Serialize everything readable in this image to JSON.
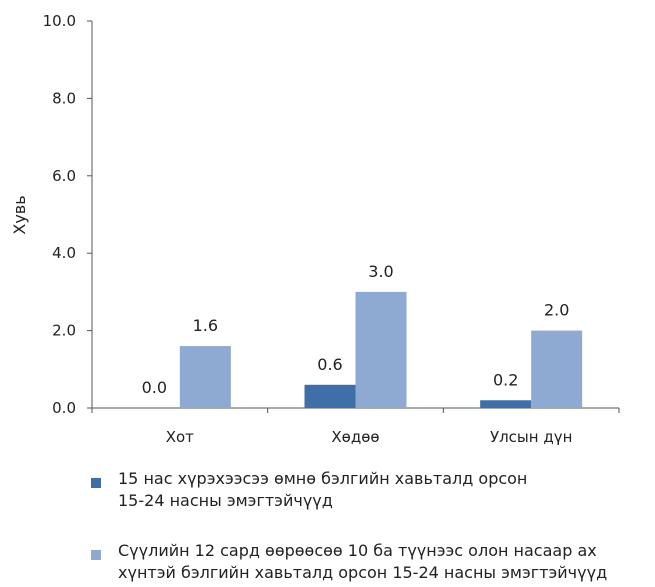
{
  "chart_data": {
    "type": "bar",
    "ylabel": "Хувь",
    "ylim": [
      0,
      10
    ],
    "yticks": [
      "0.0",
      "2.0",
      "4.0",
      "6.0",
      "8.0",
      "10.0"
    ],
    "categories": [
      "Хот",
      "Хөдөө",
      "Улсын дүн"
    ],
    "series": [
      {
        "name": "15 нас хүрэхээсээ өмнө бэлгийн хавьталд орсон 15-24 насны эмэгтэйчүүд",
        "name_lines": [
          "15 нас хүрэхээсээ өмнө бэлгийн хавьталд орсон",
          "15-24 насны эмэгтэйчүүд"
        ],
        "color": "#3E6FA9",
        "values": [
          0.0,
          0.6,
          0.2
        ],
        "labels": [
          "0.0",
          "0.6",
          "0.2"
        ]
      },
      {
        "name": "Сүүлийн 12 сард өөрөөсөө 10 ба түүнээс олон насаар ах хүнтэй бэлгийн хавьталд орсон 15-24 насны эмэгтэйчүүд",
        "name_lines": [
          "Сүүлийн 12 сард өөрөөсөө 10 ба түүнээс олон насаар ах",
          "хүнтэй бэлгийн хавьталд орсон 15-24 насны эмэгтэйчүүд"
        ],
        "color": "#8EA9D2",
        "values": [
          1.6,
          3.0,
          2.0
        ],
        "labels": [
          "1.6",
          "3.0",
          "2.0"
        ]
      }
    ],
    "grid": false,
    "legend_position": "bottom"
  }
}
